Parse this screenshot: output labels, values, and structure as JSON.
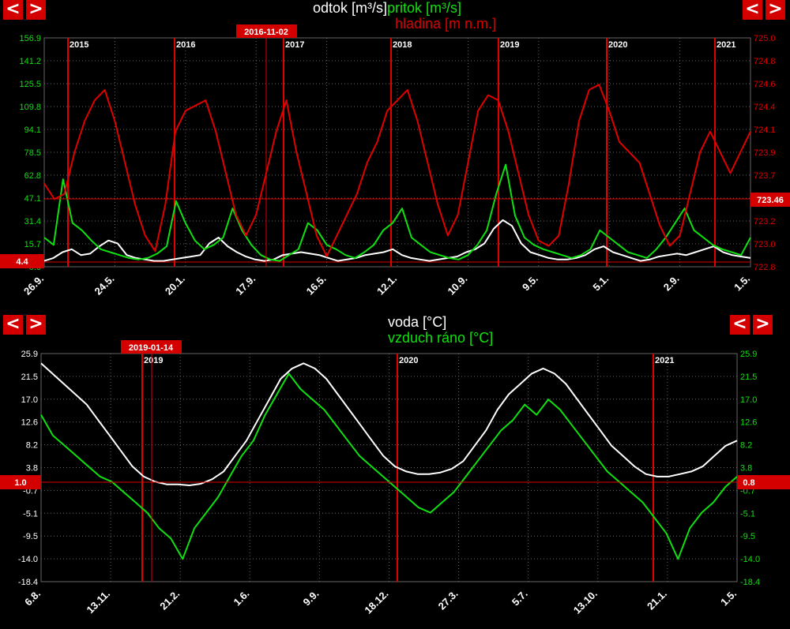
{
  "nav": {
    "prev": "<",
    "next": ">"
  },
  "colors": {
    "red": "#e00000",
    "green": "#10e010",
    "white": "#ffffff",
    "grid": "#666666"
  },
  "chart1": {
    "titles": {
      "t1": "odtok [m³/s]",
      "t2": "pritok [m³/s]",
      "t3": "hladina [m n.m.]"
    },
    "marker": {
      "label": "2016-11-02"
    },
    "left_marker": "4.4",
    "right_marker": "723.46"
  },
  "chart2": {
    "titles": {
      "t1": "voda [°C]",
      "t2": "vzduch ráno [°C]"
    },
    "marker": {
      "label": "2019-01-14"
    },
    "left_marker": "1.0",
    "right_marker": "0.8"
  },
  "chart_data": [
    {
      "type": "line",
      "title": "odtok [m³/s] pritok [m³/s] hladina [m n.m.]",
      "y_ticks_left": [
        "156.9",
        "141.2",
        "125.5",
        "109.8",
        "94.1",
        "78.5",
        "62.8",
        "47.1",
        "31.4",
        "15.7",
        "0.0"
      ],
      "y_ticks_right": [
        "725.0",
        "724.8",
        "724.6",
        "724.4",
        "724.1",
        "723.9",
        "723.7",
        "723.5",
        "723.2",
        "723.0",
        "722.8"
      ],
      "ylim_left": [
        0,
        156.9
      ],
      "ylim_right": [
        722.8,
        725.0
      ],
      "x_ticks": [
        "26.9.",
        "24.5.",
        "20.1.",
        "17.9.",
        "16.5.",
        "12.1.",
        "10.9.",
        "9.5.",
        "5.1.",
        "2.9.",
        "1.5."
      ],
      "year_markers": [
        "2015",
        "2016",
        "2017",
        "2018",
        "2019",
        "2020",
        "2021"
      ],
      "grid": true,
      "series": [
        {
          "name": "odtok [m³/s]",
          "color": "white",
          "axis": "left",
          "values": [
            4,
            6,
            10,
            12,
            8,
            9,
            14,
            18,
            16,
            8,
            6,
            5,
            4,
            4,
            5,
            6,
            7,
            8,
            16,
            20,
            14,
            10,
            7,
            5,
            4,
            5,
            8,
            9,
            10,
            9,
            8,
            6,
            4,
            5,
            6,
            8,
            9,
            10,
            12,
            8,
            6,
            5,
            4,
            5,
            6,
            7,
            10,
            12,
            16,
            26,
            32,
            28,
            16,
            10,
            8,
            6,
            5,
            5,
            6,
            8,
            12,
            14,
            10,
            8,
            6,
            4,
            5,
            7,
            8,
            9,
            8,
            10,
            12,
            14,
            10,
            8,
            7,
            6
          ]
        },
        {
          "name": "pritok [m³/s]",
          "color": "green",
          "axis": "left",
          "values": [
            20,
            15,
            60,
            30,
            25,
            18,
            12,
            10,
            8,
            6,
            5,
            6,
            9,
            14,
            45,
            30,
            18,
            12,
            15,
            20,
            40,
            25,
            15,
            8,
            5,
            4,
            8,
            12,
            30,
            25,
            15,
            12,
            8,
            6,
            10,
            15,
            25,
            30,
            40,
            20,
            15,
            10,
            8,
            6,
            5,
            8,
            15,
            25,
            50,
            70,
            35,
            20,
            15,
            12,
            10,
            8,
            6,
            8,
            12,
            25,
            20,
            15,
            10,
            8,
            6,
            12,
            20,
            30,
            40,
            25,
            20,
            15,
            12,
            10,
            8,
            20
          ]
        },
        {
          "name": "hladina [m n.m.]",
          "color": "red",
          "axis": "right",
          "values": [
            723.6,
            723.45,
            723.5,
            723.9,
            724.2,
            724.4,
            724.5,
            724.2,
            723.8,
            723.4,
            723.1,
            722.95,
            723.4,
            724.1,
            724.3,
            724.35,
            724.4,
            724.1,
            723.7,
            723.3,
            723.1,
            723.3,
            723.7,
            724.1,
            724.4,
            723.9,
            723.5,
            723.1,
            722.9,
            723.1,
            723.3,
            723.5,
            723.8,
            724.0,
            724.3,
            724.4,
            724.5,
            724.2,
            723.8,
            723.4,
            723.1,
            723.3,
            723.8,
            724.3,
            724.45,
            724.4,
            724.1,
            723.7,
            723.3,
            723.05,
            723.0,
            723.1,
            723.6,
            724.2,
            724.5,
            724.55,
            724.3,
            724.0,
            723.9,
            723.8,
            723.5,
            723.2,
            723.0,
            723.1,
            723.5,
            723.9,
            724.1,
            723.9,
            723.7,
            723.9,
            724.1
          ]
        }
      ]
    },
    {
      "type": "line",
      "title": "voda [°C] vzduch ráno [°C]",
      "y_ticks_left": [
        "25.9",
        "21.5",
        "17.0",
        "12.6",
        "8.2",
        "3.8",
        "-0.7",
        "-5.1",
        "-9.5",
        "-14.0",
        "-18.4"
      ],
      "y_ticks_right": [
        "25.9",
        "21.5",
        "17.0",
        "12.6",
        "8.2",
        "3.8",
        "-0.7",
        "-5.1",
        "-9.5",
        "-14.0",
        "-18.4"
      ],
      "ylim": [
        -18.4,
        25.9
      ],
      "x_ticks": [
        "6.8.",
        "13.11.",
        "21.2.",
        "1.6.",
        "9.9.",
        "18.12.",
        "27.3.",
        "5.7.",
        "13.10.",
        "21.1.",
        "1.5."
      ],
      "year_markers": [
        "2019",
        "2020",
        "2021"
      ],
      "grid": true,
      "series": [
        {
          "name": "voda [°C]",
          "color": "white",
          "values": [
            24,
            22,
            20,
            18,
            16,
            13,
            10,
            7,
            4,
            2,
            1,
            0.5,
            0.5,
            0.3,
            0.6,
            1.5,
            3,
            6,
            9,
            13,
            17,
            21,
            23,
            24,
            23,
            21,
            18,
            15,
            12,
            9,
            6,
            4,
            3,
            2.5,
            2.5,
            2.8,
            3.5,
            5,
            8,
            11,
            15,
            18,
            20,
            22,
            23,
            22,
            20,
            17,
            14,
            11,
            8,
            6,
            4,
            2.5,
            2,
            2,
            2.5,
            3,
            4,
            6,
            8,
            9
          ]
        },
        {
          "name": "vzduch ráno [°C]",
          "color": "green",
          "values": [
            14,
            10,
            8,
            6,
            4,
            2,
            1,
            -1,
            -3,
            -5,
            -8,
            -10,
            -14,
            -8,
            -5,
            -2,
            2,
            6,
            9,
            14,
            18,
            22,
            19,
            17,
            15,
            12,
            9,
            6,
            4,
            2,
            0,
            -2,
            -4,
            -5,
            -3,
            -1,
            2,
            5,
            8,
            11,
            13,
            16,
            14,
            17,
            15,
            12,
            9,
            6,
            3,
            1,
            -1,
            -3,
            -6,
            -9,
            -14,
            -8,
            -5,
            -3,
            0,
            2
          ]
        }
      ]
    }
  ]
}
